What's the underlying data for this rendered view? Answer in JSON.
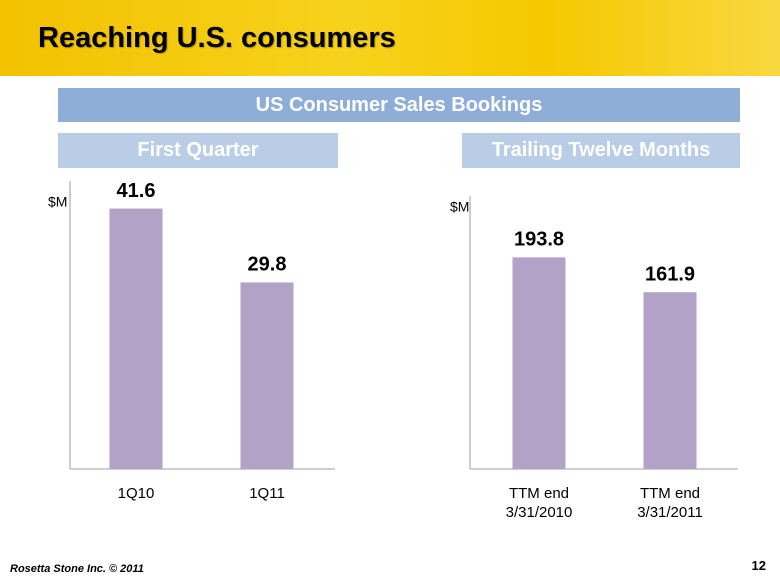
{
  "slide": {
    "title": "Reaching U.S. consumers",
    "banner": "US Consumer Sales Bookings",
    "footer": "Rosetta Stone Inc. © 2011",
    "page_number": "12"
  },
  "chart_data": [
    {
      "type": "bar",
      "title": "First Quarter",
      "ylabel": "$M",
      "categories": [
        "1Q10",
        "1Q11"
      ],
      "values": [
        41.6,
        29.8
      ],
      "color": "#b3a2c7",
      "ylim": [
        0,
        46
      ]
    },
    {
      "type": "bar",
      "title": "Trailing Twelve Months",
      "ylabel": "$M",
      "categories": [
        "TTM end\n3/31/2010",
        "TTM end\n3/31/2011"
      ],
      "values": [
        193.8,
        161.9
      ],
      "color": "#b3a2c7",
      "ylim": [
        0,
        250
      ]
    }
  ]
}
